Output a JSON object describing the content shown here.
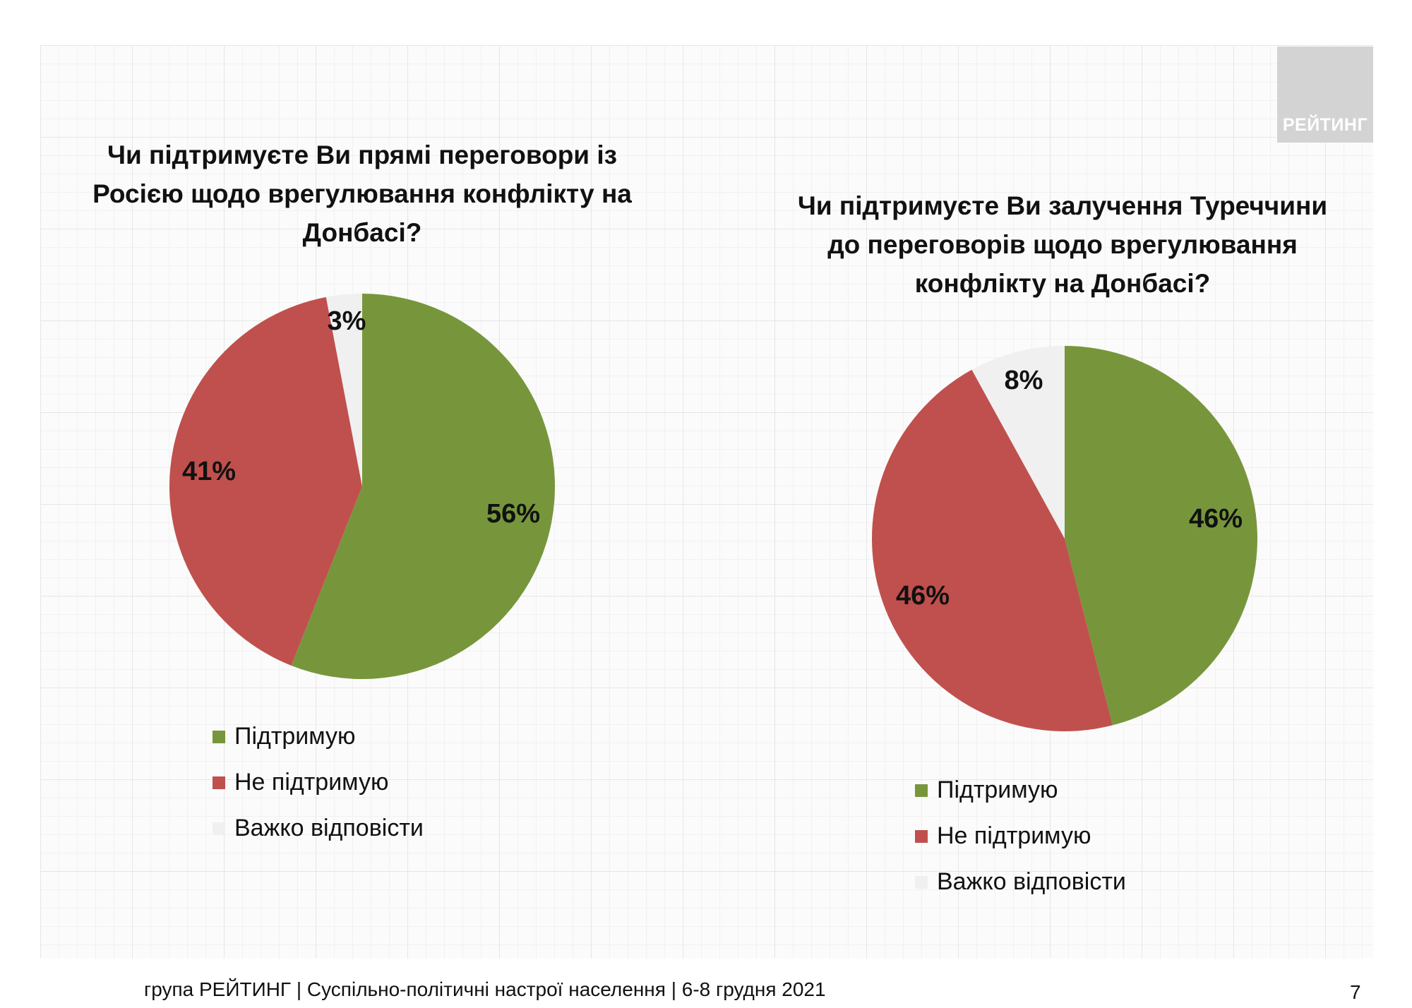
{
  "logo": {
    "text": "РЕЙТИНГ"
  },
  "footer": {
    "text": "група РЕЙТИНГ | Суспільно-політичні настрої населення  | 6-8 грудня 2021",
    "page": "7"
  },
  "colors": {
    "support": "#77963b",
    "oppose": "#c0504d",
    "hard": "#f0f0f0"
  },
  "chart_data": [
    {
      "type": "pie",
      "title": "Чи підтримуєте Ви прямі переговори із\nРосією щодо врегулювання конфлікту на\nДонбасі?",
      "categories": [
        "Підтримую",
        "Не підтримую",
        "Важко відповісти"
      ],
      "values": [
        56,
        41,
        3
      ],
      "labels": [
        "56%",
        "41%",
        "3%"
      ],
      "legend": "bottom"
    },
    {
      "type": "pie",
      "title": "Чи підтримуєте Ви залучення Туреччини\nдо переговорів щодо врегулювання\nконфлікту на Донбасі?",
      "categories": [
        "Підтримую",
        "Не підтримую",
        "Важко відповісти"
      ],
      "values": [
        46,
        46,
        8
      ],
      "labels": [
        "46%",
        "46%",
        "8%"
      ],
      "legend": "bottom"
    }
  ]
}
